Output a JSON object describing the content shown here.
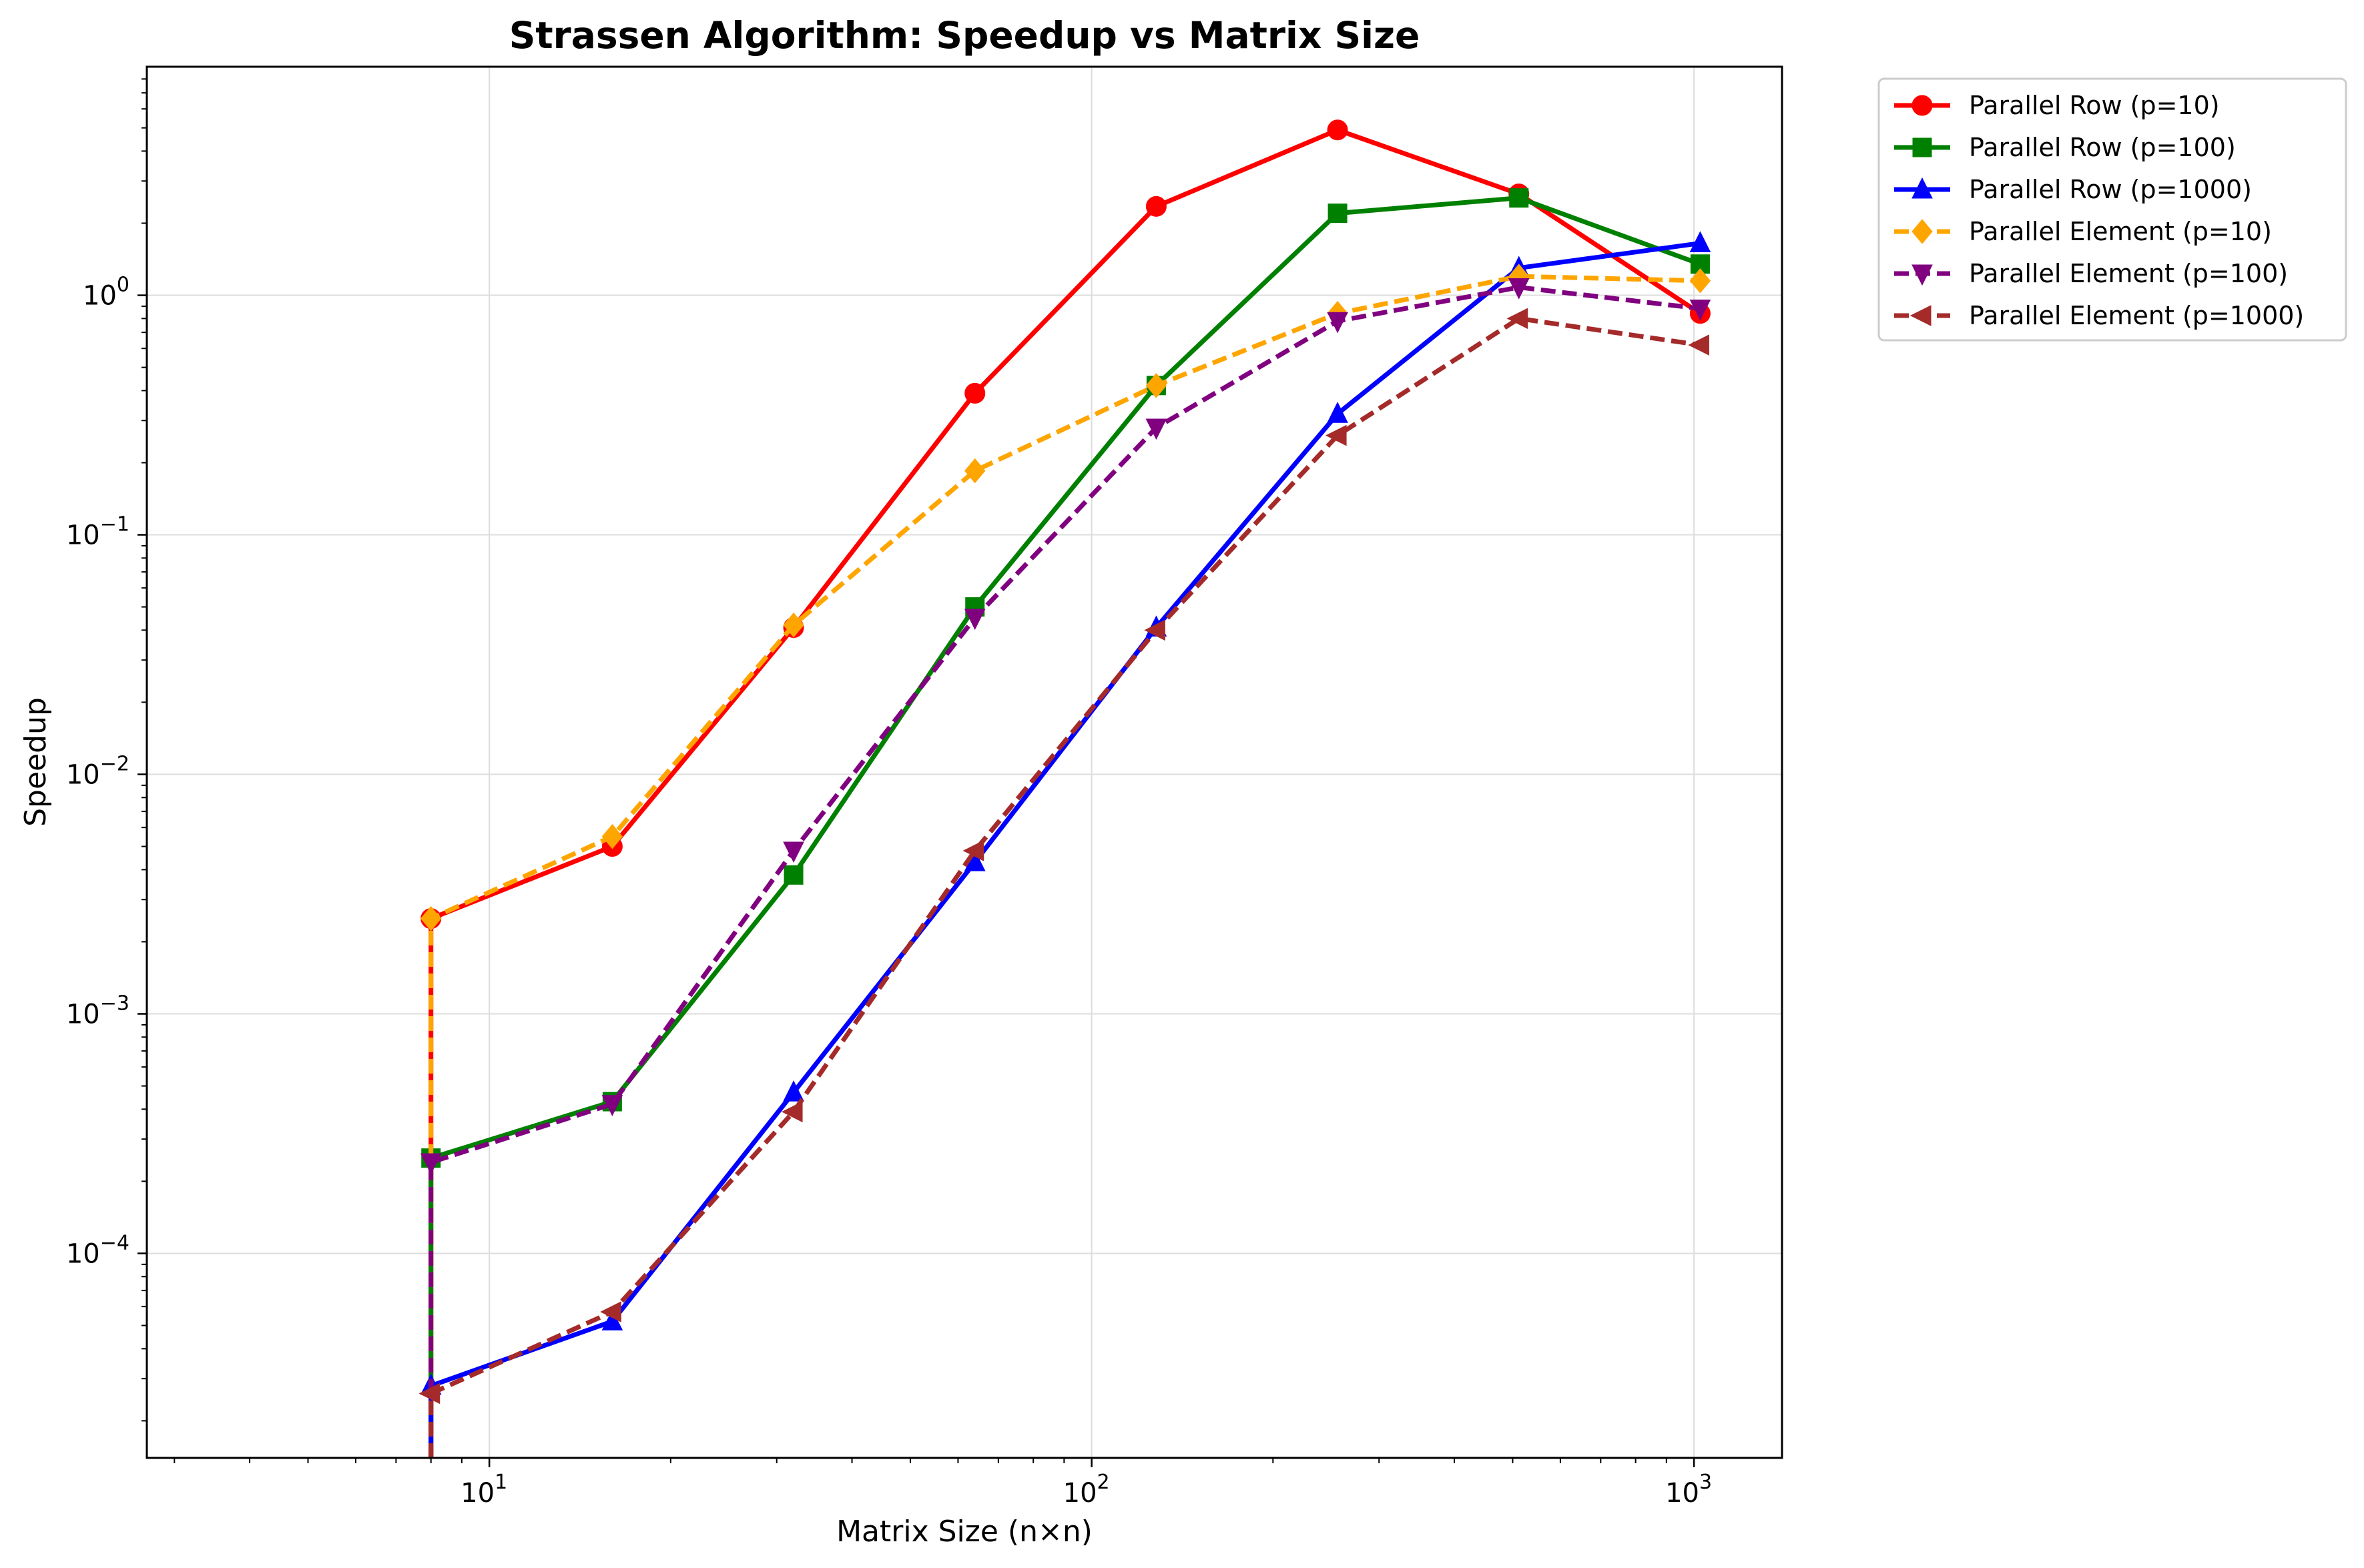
{
  "chart_data": {
    "type": "line",
    "title": "Strassen Algorithm: Speedup vs Matrix Size",
    "xlabel": "Matrix Size (n×n)",
    "ylabel": "Speedup",
    "xscale": "log",
    "yscale": "log",
    "xlim": [
      2.7,
      1400
    ],
    "ylim": [
      1.4e-05,
      9
    ],
    "x_ticks": [
      {
        "value": 10,
        "base": "10",
        "exp": "1"
      },
      {
        "value": 100,
        "base": "10",
        "exp": "2"
      },
      {
        "value": 1000,
        "base": "10",
        "exp": "3"
      }
    ],
    "y_ticks": [
      {
        "value": 0.0001,
        "base": "10",
        "exp": "−4"
      },
      {
        "value": 0.001,
        "base": "10",
        "exp": "−3"
      },
      {
        "value": 0.01,
        "base": "10",
        "exp": "−2"
      },
      {
        "value": 0.1,
        "base": "10",
        "exp": "−1"
      },
      {
        "value": 1,
        "base": "10",
        "exp": "0"
      }
    ],
    "grid": true,
    "legend_position": "outside-top-right",
    "x": [
      8,
      16,
      32,
      64,
      128,
      256,
      512,
      1024
    ],
    "series": [
      {
        "name": "Parallel Row (p=10)",
        "color": "#ff0000",
        "marker": "circle",
        "dashed": false,
        "values": [
          0.0025,
          0.005,
          0.041,
          0.39,
          2.35,
          4.9,
          2.65,
          0.84
        ]
      },
      {
        "name": "Parallel Row (p=100)",
        "color": "#008000",
        "marker": "square",
        "dashed": false,
        "values": [
          0.00025,
          0.00043,
          0.0038,
          0.05,
          0.42,
          2.2,
          2.55,
          1.35
        ]
      },
      {
        "name": "Parallel Row (p=1000)",
        "color": "#0000ff",
        "marker": "triangle-up",
        "dashed": false,
        "values": [
          2.8e-05,
          5.2e-05,
          0.00047,
          0.0043,
          0.041,
          0.32,
          1.3,
          1.65
        ]
      },
      {
        "name": "Parallel Element (p=10)",
        "color": "#ffa500",
        "marker": "diamond",
        "dashed": true,
        "values": [
          0.0025,
          0.0055,
          0.042,
          0.185,
          0.42,
          0.84,
          1.2,
          1.15
        ]
      },
      {
        "name": "Parallel Element (p=100)",
        "color": "#800080",
        "marker": "triangle-down",
        "dashed": true,
        "values": [
          0.00024,
          0.00042,
          0.0048,
          0.045,
          0.28,
          0.78,
          1.08,
          0.88
        ]
      },
      {
        "name": "Parallel Element (p=1000)",
        "color": "#a52a2a",
        "marker": "triangle-left",
        "dashed": true,
        "values": [
          2.6e-05,
          5.7e-05,
          0.00039,
          0.0048,
          0.04,
          0.26,
          0.8,
          0.62
        ]
      }
    ]
  }
}
